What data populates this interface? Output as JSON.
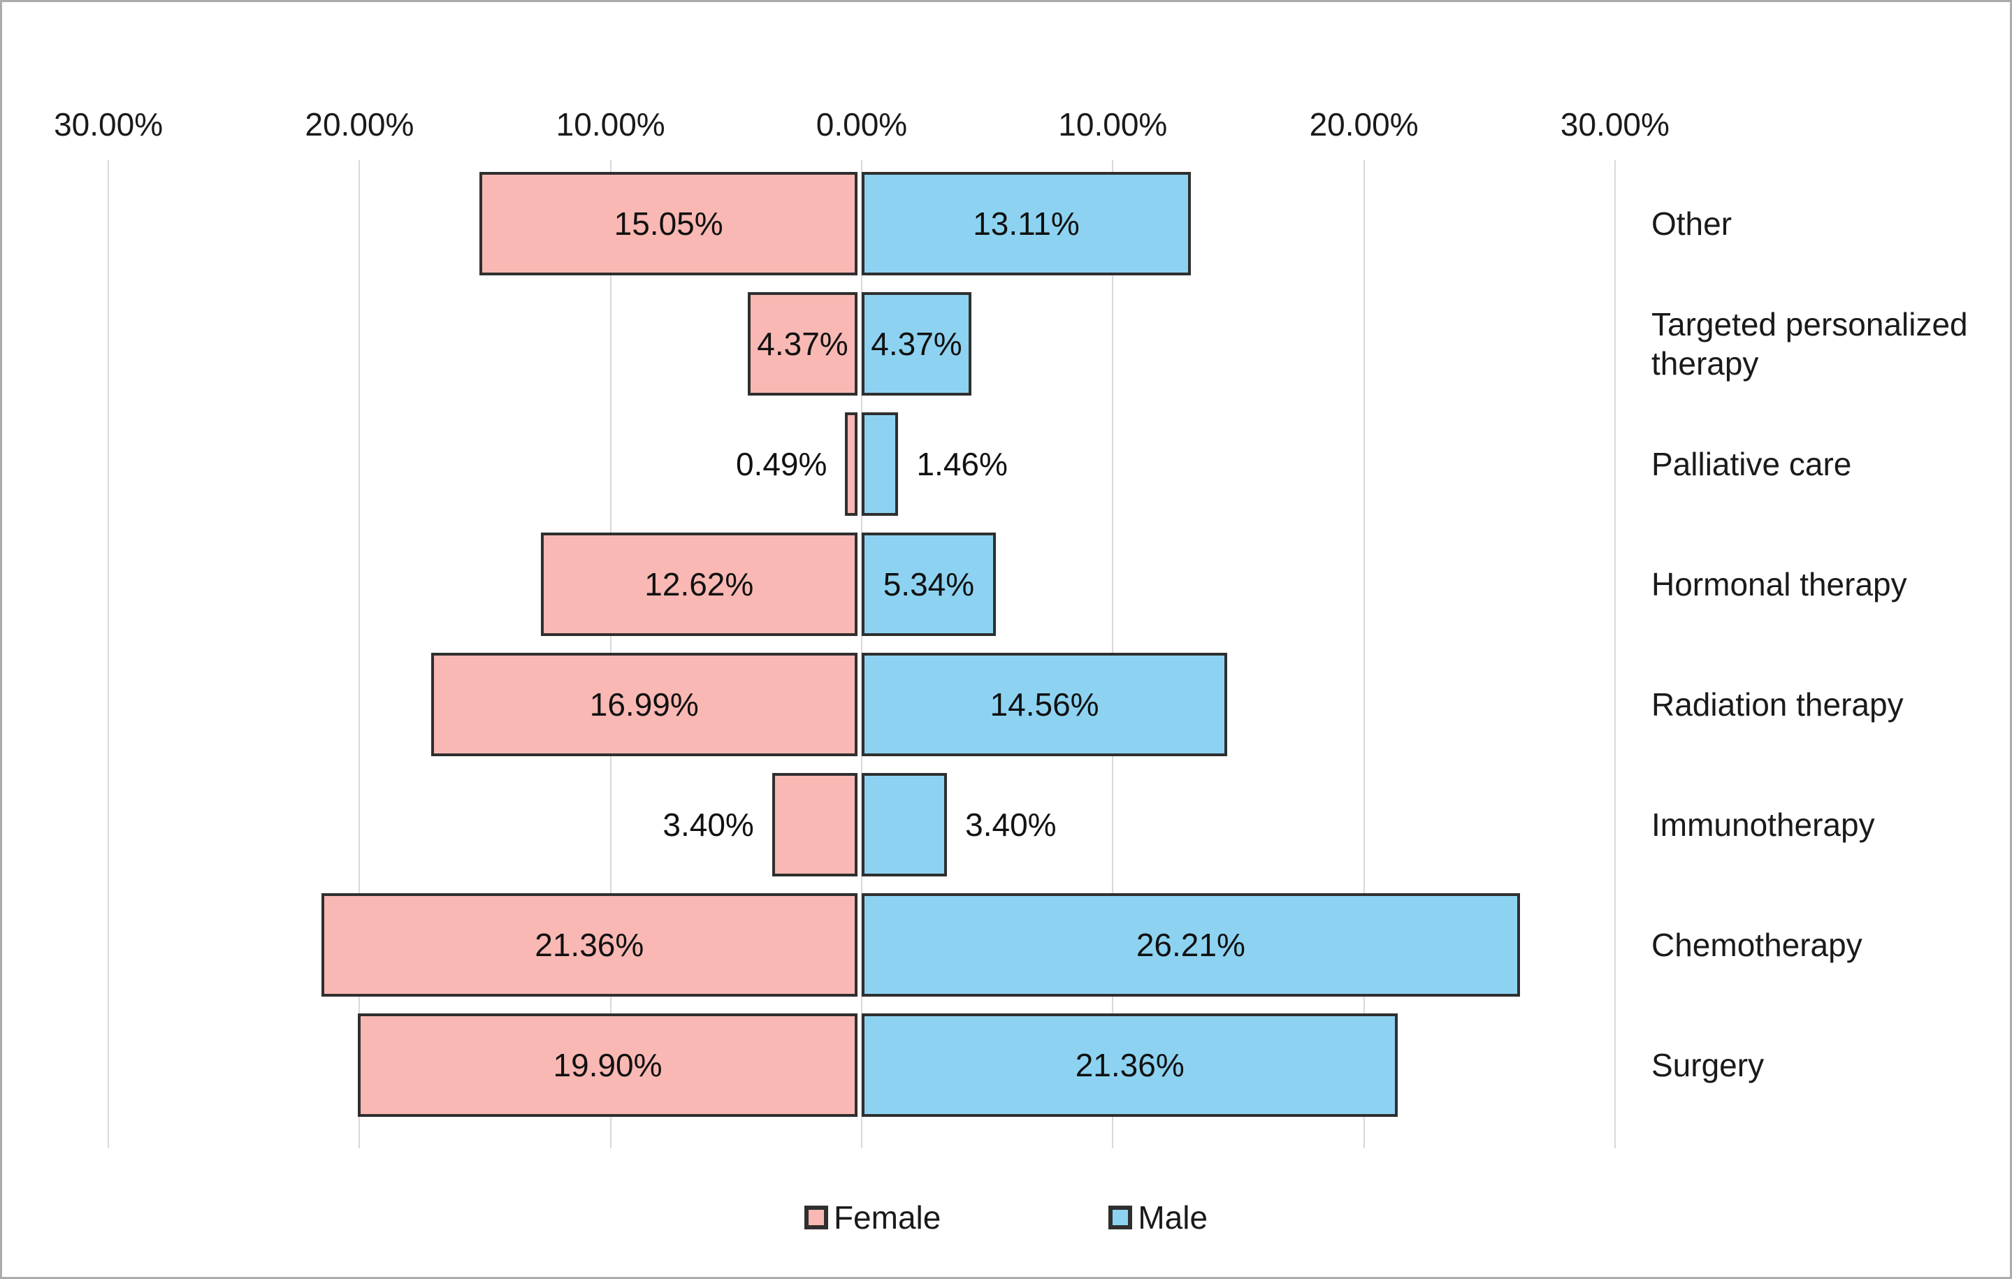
{
  "figure": {
    "background_color": "#FFFFFF",
    "border_color": "#ABABAB"
  },
  "chart_data": {
    "type": "bar",
    "subtype": "diverging-horizontal-pyramid",
    "title": "",
    "categories": [
      "Other",
      "Targeted personalized therapy",
      "Palliative care",
      "Hormonal therapy",
      "Radiation therapy",
      "Immunotherapy",
      "Chemotherapy",
      "Surgery"
    ],
    "series": [
      {
        "name": "Female",
        "side": "left",
        "color": "#F9B8B3",
        "border_color": "#2F2F2F",
        "values": [
          15.05,
          4.37,
          0.49,
          12.62,
          16.99,
          3.4,
          21.36,
          19.9
        ],
        "labels": [
          "15.05%",
          "4.37%",
          "0.49%",
          "12.62%",
          "16.99%",
          "3.40%",
          "21.36%",
          "19.90%"
        ]
      },
      {
        "name": "Male",
        "side": "right",
        "color": "#8DD3F1",
        "border_color": "#2F2F2F",
        "values": [
          13.11,
          4.37,
          1.46,
          5.34,
          14.56,
          3.4,
          26.21,
          21.36
        ],
        "labels": [
          "13.11%",
          "4.37%",
          "1.46%",
          "5.34%",
          "14.56%",
          "3.40%",
          "26.21%",
          "21.36%"
        ]
      }
    ],
    "x_axis": {
      "tick_labels": [
        "30.00%",
        "20.00%",
        "10.00%",
        "0.00%",
        "10.00%",
        "20.00%",
        "30.00%"
      ],
      "tick_values": [
        -30,
        -20,
        -10,
        0,
        10,
        20,
        30
      ],
      "max_abs": 30,
      "grid": true,
      "gridline_color": "#D9D9D9"
    },
    "legend": {
      "position": "bottom-center",
      "items": [
        {
          "label": "Female",
          "color": "#F9B8B3"
        },
        {
          "label": "Male",
          "color": "#8DD3F1"
        }
      ]
    }
  }
}
